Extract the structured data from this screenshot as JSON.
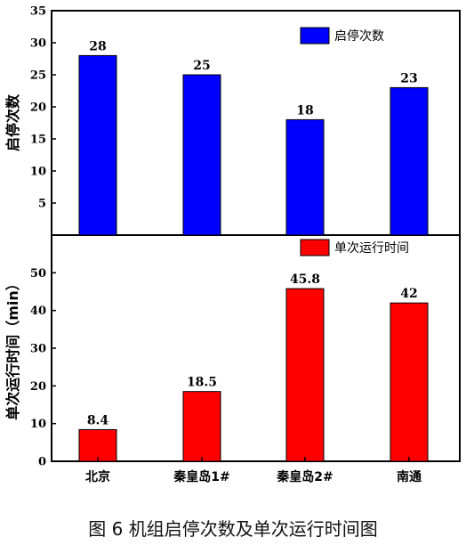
{
  "caption": "图 6  机组启停次数及单次运行时间图",
  "chart_data": [
    {
      "type": "bar",
      "categories": [
        "北京",
        "秦皇岛1#",
        "秦皇岛2#",
        "南通"
      ],
      "series": [
        {
          "name": "启停次数",
          "values": [
            28,
            25,
            18,
            23
          ],
          "color": "#0000ff"
        }
      ],
      "data_labels": [
        "28",
        "25",
        "18",
        "23"
      ],
      "ylabel": "启停次数",
      "ylim": [
        0,
        35
      ],
      "yticks": [
        5,
        10,
        15,
        20,
        25,
        30,
        35
      ],
      "legend": "top-right",
      "grid": false
    },
    {
      "type": "bar",
      "categories": [
        "北京",
        "秦皇岛1#",
        "秦皇岛2#",
        "南通"
      ],
      "series": [
        {
          "name": "单次运行时间",
          "values": [
            8.4,
            18.5,
            45.8,
            42
          ],
          "color": "#ff0000"
        }
      ],
      "data_labels": [
        "8.4",
        "18.5",
        "45.8",
        "42"
      ],
      "ylabel": "单次运行时间（min）",
      "ylim": [
        0,
        60
      ],
      "yticks": [
        0,
        10,
        20,
        30,
        40,
        50
      ],
      "legend": "top-right",
      "grid": false
    }
  ]
}
